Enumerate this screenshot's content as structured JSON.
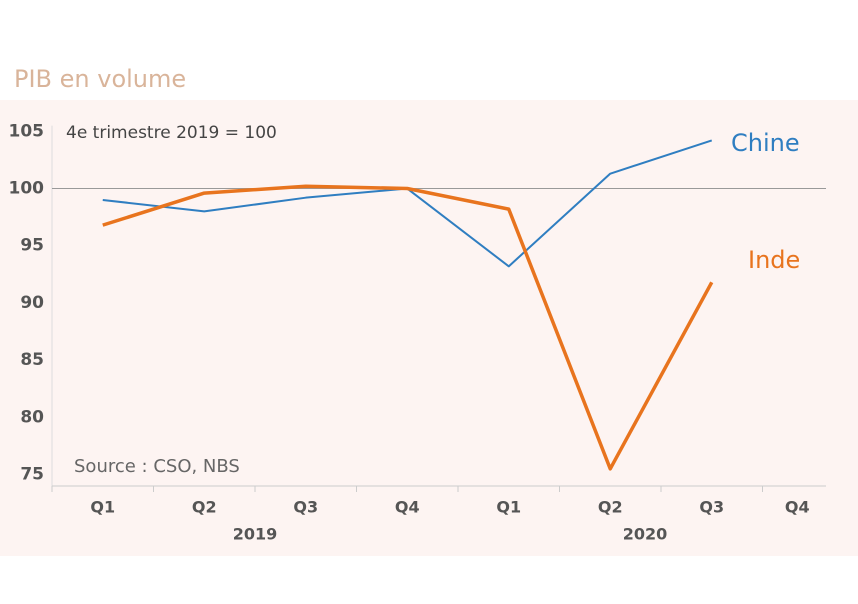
{
  "chart_data": {
    "type": "line",
    "title": "PIB en volume",
    "annotations": [
      "4e trimestre 2019 = 100",
      "Source : CSO, NBS"
    ],
    "categories": [
      "Q1",
      "Q2",
      "Q3",
      "Q4",
      "Q1",
      "Q2",
      "Q3",
      "Q4"
    ],
    "category_groups": [
      "2019",
      "2020"
    ],
    "series": [
      {
        "name": "Chine",
        "color": "#2f7ec1",
        "values": [
          99.0,
          98.0,
          99.2,
          100,
          93.2,
          101.3,
          104.2,
          null
        ]
      },
      {
        "name": "Inde",
        "color": "#e8741e",
        "values": [
          96.8,
          99.6,
          100.2,
          100,
          98.2,
          75.5,
          91.8,
          null
        ]
      }
    ],
    "ylim": [
      74,
      105.5
    ],
    "yticks": [
      75,
      80,
      85,
      90,
      95,
      100,
      105
    ],
    "reference_line": 100
  }
}
